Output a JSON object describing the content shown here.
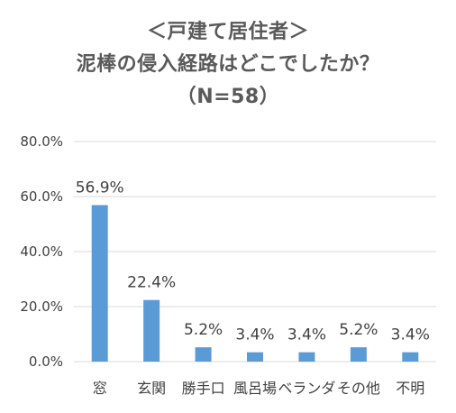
{
  "title": {
    "line1": "＜戸建て居住者＞",
    "line2": "泥棒の侵入経路はどこでしたか？",
    "line3": "（N=58）"
  },
  "colors": {
    "bar": "#5b9bd5",
    "grid": "#d9d9d9",
    "text": "#404040",
    "title": "#595959"
  },
  "chart_data": {
    "type": "bar",
    "title": "＜戸建て居住者＞ 泥棒の侵入経路はどこでしたか？ （N=58）",
    "categories": [
      "窓",
      "玄関",
      "勝手口",
      "風呂場",
      "ベランダ",
      "その他",
      "不明"
    ],
    "values": [
      56.9,
      22.4,
      5.2,
      3.4,
      3.4,
      5.2,
      3.4
    ],
    "value_labels": [
      "56.9%",
      "22.4%",
      "5.2%",
      "3.4%",
      "3.4%",
      "5.2%",
      "3.4%"
    ],
    "ylim": [
      0,
      80
    ],
    "yticks": [
      0,
      20,
      40,
      60,
      80
    ],
    "ytick_labels": [
      "0.0%",
      "20.0%",
      "40.0%",
      "60.0%",
      "80.0%"
    ],
    "xlabel": "",
    "ylabel": "",
    "grid": true,
    "legend": "none"
  }
}
